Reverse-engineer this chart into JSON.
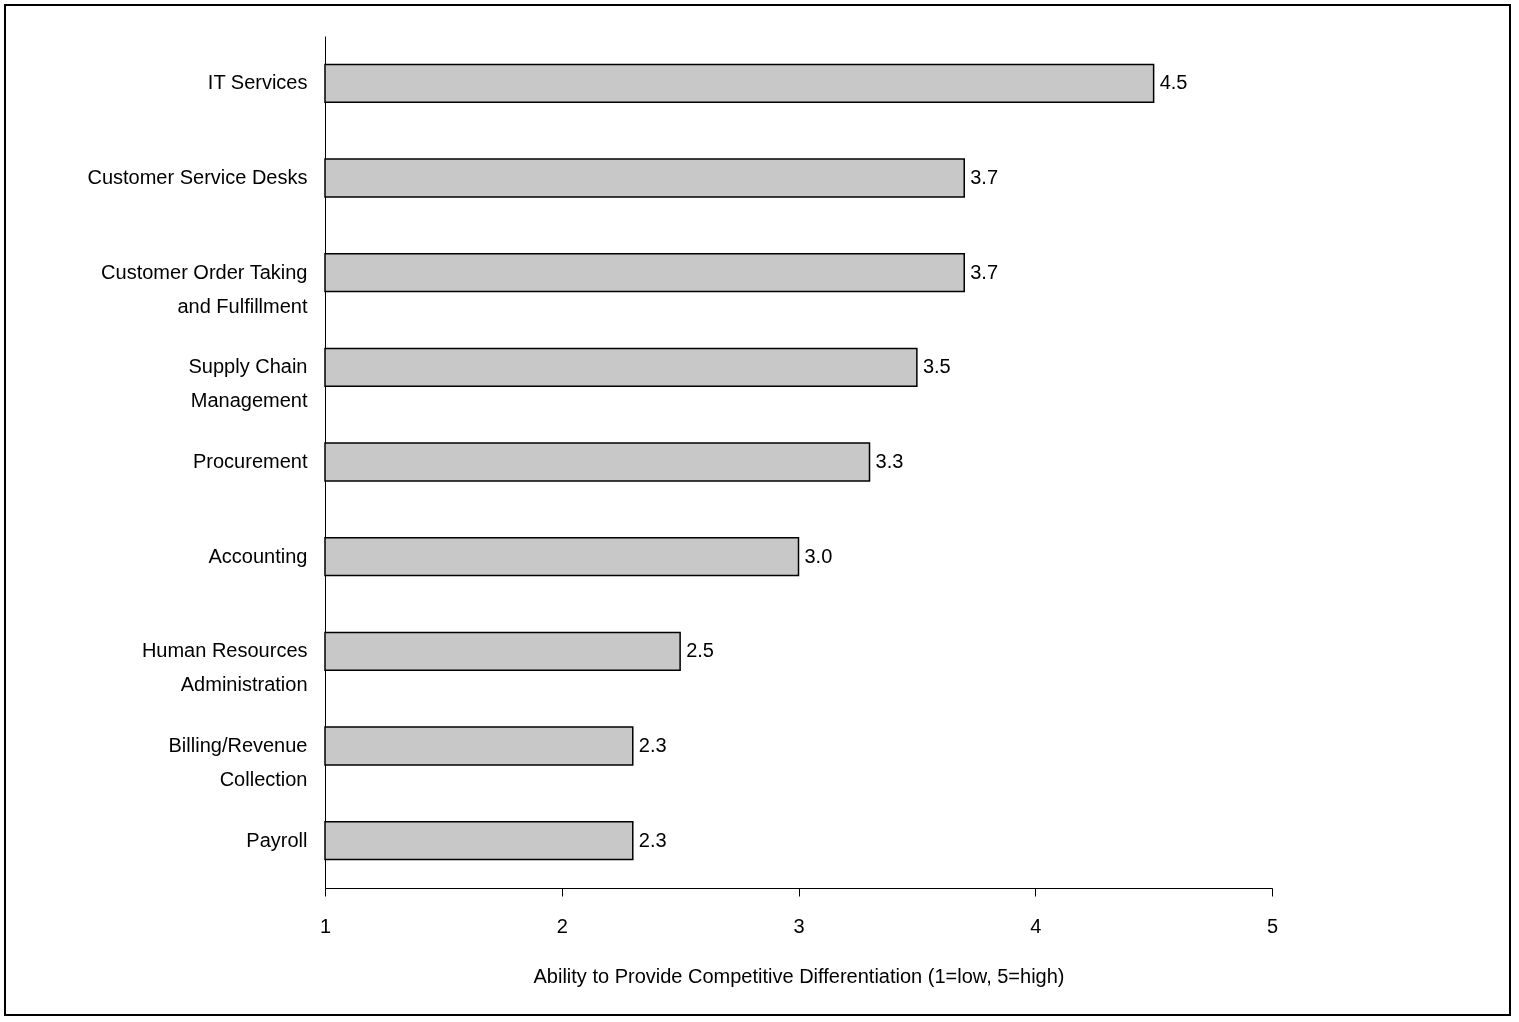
{
  "chart_data": {
    "type": "bar",
    "orientation": "horizontal",
    "xlabel": "Ability to Provide Competitive Differentiation  (1=low, 5=high)",
    "categories": [
      "IT Services",
      "Customer Service Desks",
      "Customer Order Taking and Fulfillment",
      "Supply Chain Management",
      "Procurement",
      "Accounting",
      "Human Resources Administration",
      "Billing/Revenue Collection",
      "Payroll"
    ],
    "values": [
      4.5,
      3.7,
      3.7,
      3.5,
      3.3,
      3.0,
      2.5,
      2.3,
      2.3
    ],
    "value_labels": [
      "4.5",
      "3.7",
      "3.7",
      "3.5",
      "3.3",
      "3.0",
      "2.5",
      "2.3",
      "2.3"
    ],
    "color": "#c8c8c8",
    "xlim": [
      1,
      5
    ],
    "xticks": [
      1,
      2,
      3,
      4,
      5
    ],
    "grid": false
  }
}
